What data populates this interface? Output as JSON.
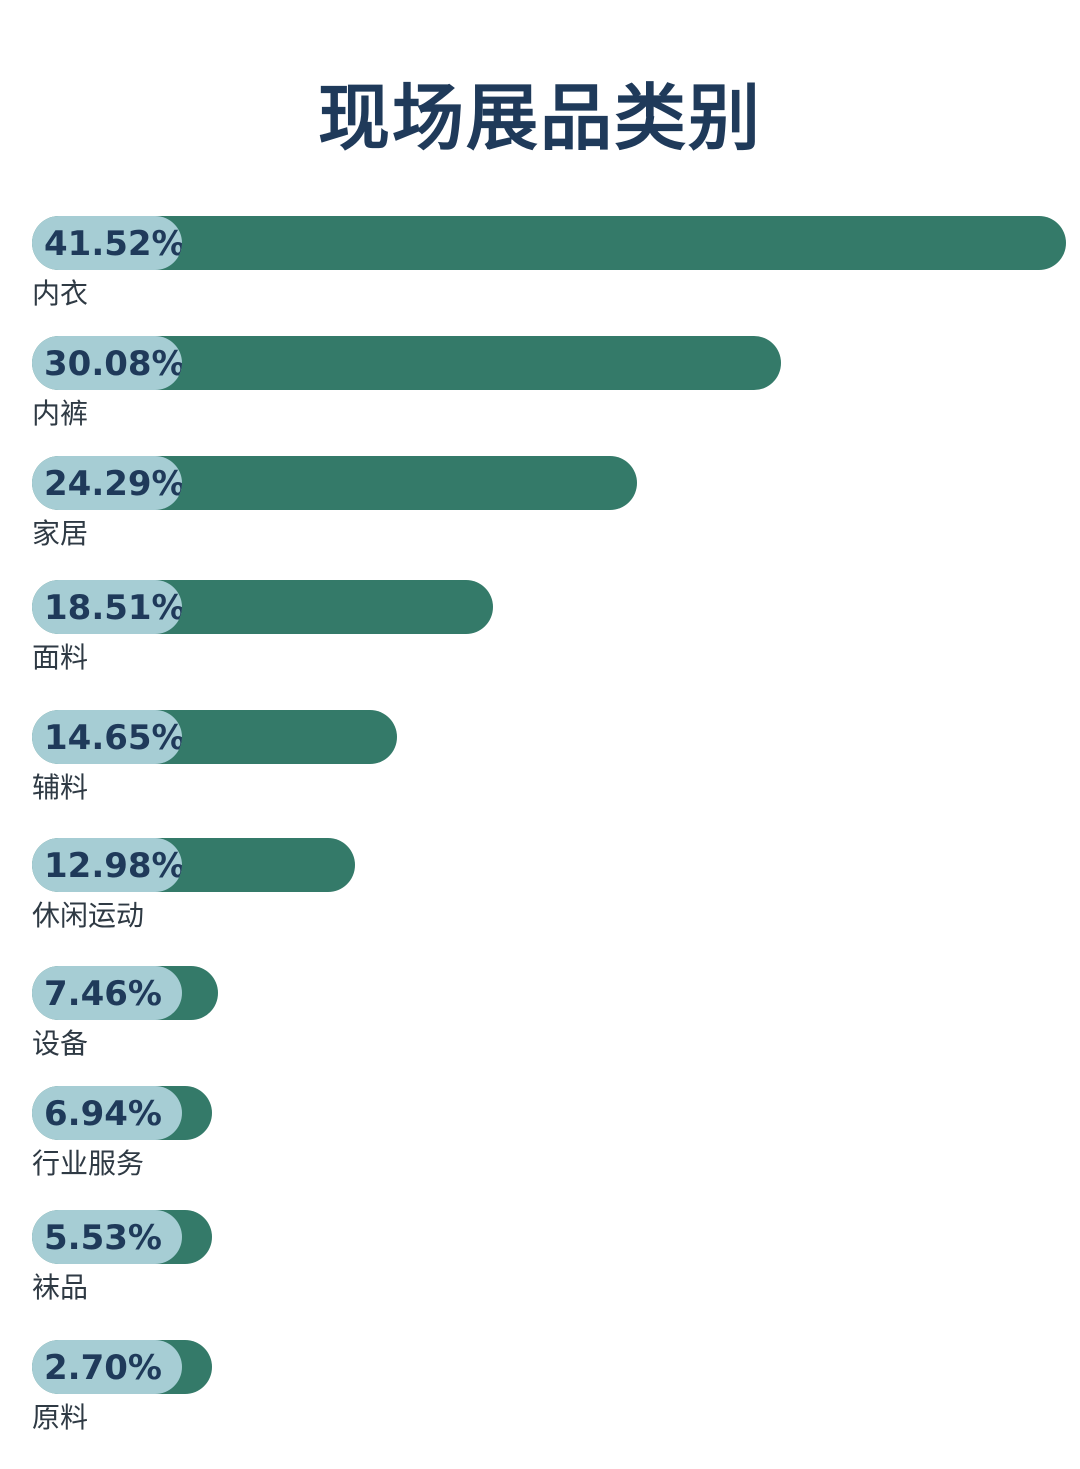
{
  "title": "现场展品类别",
  "chart_data": {
    "type": "bar",
    "orientation": "horizontal",
    "title": "现场展品类别",
    "unit": "%",
    "categories": [
      "内衣",
      "内裤",
      "家居",
      "面料",
      "辅料",
      "休闲运动",
      "设备",
      "行业服务",
      "袜品",
      "原料"
    ],
    "values": [
      41.52,
      30.08,
      24.29,
      18.51,
      14.65,
      12.98,
      7.46,
      6.94,
      5.53,
      2.7
    ],
    "value_labels": [
      "41.52%",
      "30.08%",
      "24.29%",
      "18.51%",
      "14.65%",
      "12.98%",
      "7.46%",
      "6.94%",
      "5.53%",
      "2.70%"
    ],
    "xlim": [
      0,
      41.52
    ],
    "grid": false,
    "legend": "none",
    "colors": {
      "bar": "#347a69",
      "label_pill": "#a6cdd4",
      "label_text": "#1f3a5a",
      "title": "#1f3a5a"
    }
  }
}
